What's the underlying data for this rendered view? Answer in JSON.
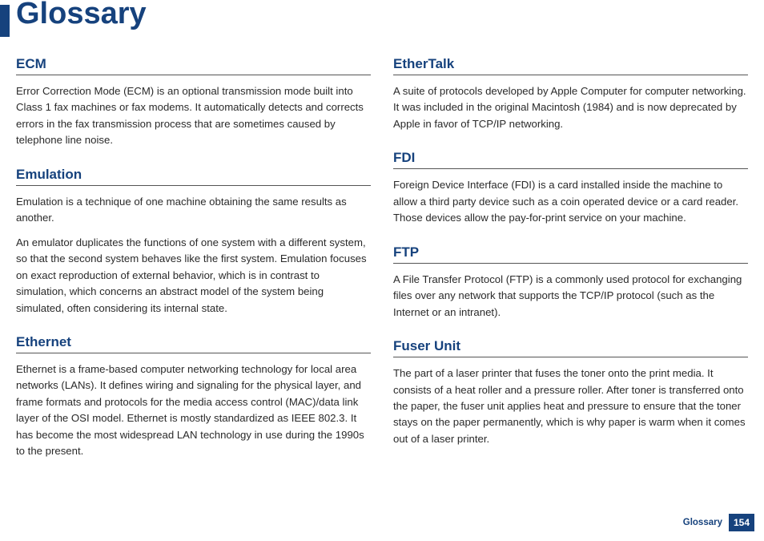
{
  "colors": {
    "accent": "#16427d",
    "body_text": "#2a2a2a",
    "rule": "#555555",
    "page_badge_bg": "#16427d",
    "page_badge_fg": "#ffffff"
  },
  "typography": {
    "title_fontsize_pt": 28,
    "heading_fontsize_pt": 12.5,
    "body_fontsize_pt": 10,
    "footer_fontsize_pt": 8.5
  },
  "page_title": "Glossary",
  "footer": {
    "label": "Glossary",
    "page_number": "154"
  },
  "left_column": [
    {
      "term": "ECM",
      "paras": [
        "Error Correction Mode (ECM) is an optional transmission mode built into Class 1 fax machines or fax modems. It automatically detects and corrects errors in the fax transmission process that are sometimes caused by telephone line noise."
      ]
    },
    {
      "term": "Emulation",
      "paras": [
        "Emulation is a technique of one machine obtaining the same results as another.",
        "An emulator duplicates the functions of one system with a different system, so that the second system behaves like the first system. Emulation focuses on exact reproduction of external behavior, which is in contrast to simulation, which concerns an abstract model of the system being simulated, often considering its internal state."
      ]
    },
    {
      "term": "Ethernet",
      "paras": [
        "Ethernet is a frame-based computer networking technology for local area networks (LANs). It defines wiring and signaling for the physical layer, and frame formats and protocols for the media access control (MAC)/data link layer of the OSI model. Ethernet is mostly standardized as IEEE 802.3. It has become the most widespread LAN technology in use during the 1990s to the present."
      ]
    }
  ],
  "right_column": [
    {
      "term": "EtherTalk",
      "paras": [
        "A suite of protocols developed by Apple Computer for computer networking. It was included in the original Macintosh (1984) and is now deprecated by Apple in favor of TCP/IP networking."
      ]
    },
    {
      "term": "FDI",
      "paras": [
        "Foreign Device Interface (FDI) is a card installed inside the machine to allow a third party device such as a coin operated device or a card reader. Those devices allow the pay-for-print service on your machine."
      ]
    },
    {
      "term": "FTP",
      "paras": [
        "A File Transfer Protocol (FTP) is a commonly used protocol for exchanging files over any network that supports the TCP/IP protocol (such as the Internet or an intranet)."
      ]
    },
    {
      "term": "Fuser Unit",
      "paras": [
        "The part of a laser printer that fuses the toner onto the print media. It consists of a heat roller and a pressure roller. After toner is transferred onto the paper, the fuser unit applies heat and pressure to ensure that the toner stays on the paper permanently, which is why paper is warm when it comes out of a laser printer."
      ]
    }
  ]
}
